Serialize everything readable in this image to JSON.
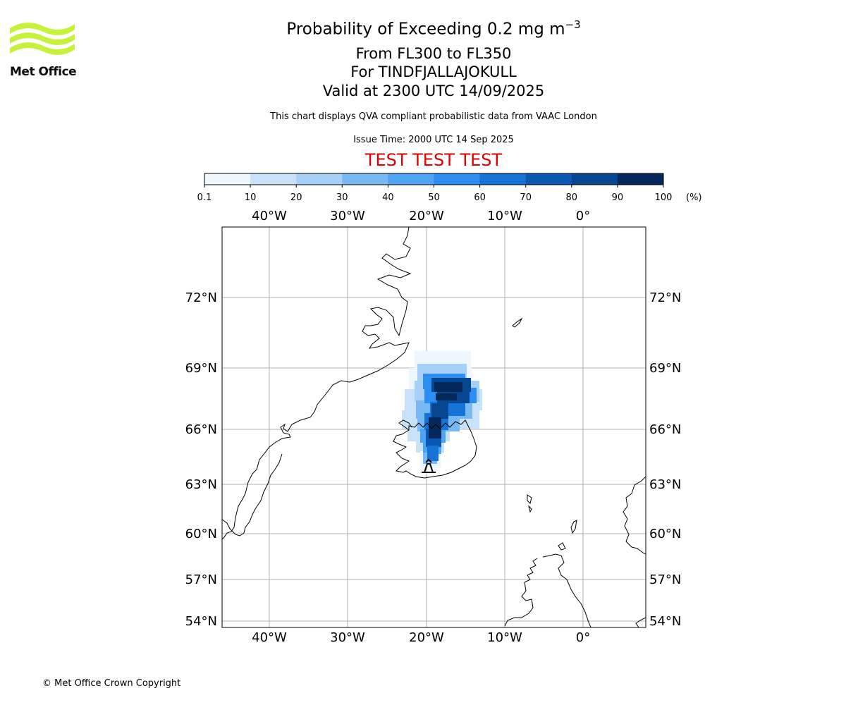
{
  "logo": {
    "text": "Met Office",
    "color": "#c6f33a"
  },
  "title": {
    "main": "Probability of Exceeding 0.2 mg m",
    "main_exp": "−3",
    "levels": "From FL300 to FL350",
    "volcano": "For TINDFJALLAJOKULL",
    "valid": "Valid at 2300 UTC 14/09/2025",
    "subtitle": "This chart displays QVA compliant probabilistic data from VAAC London",
    "issue": "Issue Time: 2000 UTC 14 Sep 2025",
    "test_banner": "TEST TEST TEST",
    "test_color": "#e00000"
  },
  "colorbar": {
    "ticks": [
      "0.1",
      "10",
      "20",
      "30",
      "40",
      "50",
      "60",
      "70",
      "80",
      "90",
      "100"
    ],
    "unit": "(%)",
    "colors": [
      "#eef6fe",
      "#c8e2fa",
      "#a6d0f8",
      "#78b9f4",
      "#4ea3f2",
      "#2b8ef0",
      "#1572d6",
      "#0b58b4",
      "#064590",
      "#04285a"
    ]
  },
  "map": {
    "lon_labels": [
      "40°W",
      "30°W",
      "20°W",
      "10°W",
      "0°"
    ],
    "lat_labels": [
      "72°N",
      "69°N",
      "66°N",
      "63°N",
      "60°N",
      "57°N",
      "54°N"
    ],
    "volcano_name": "TINDFJALLAJOKULL",
    "probability_field": [
      {
        "band": "0.1-10",
        "region": "outer plume"
      },
      {
        "band": "90-100",
        "region": "core plume"
      }
    ]
  },
  "footer": {
    "copyright": "© Met Office Crown Copyright"
  }
}
